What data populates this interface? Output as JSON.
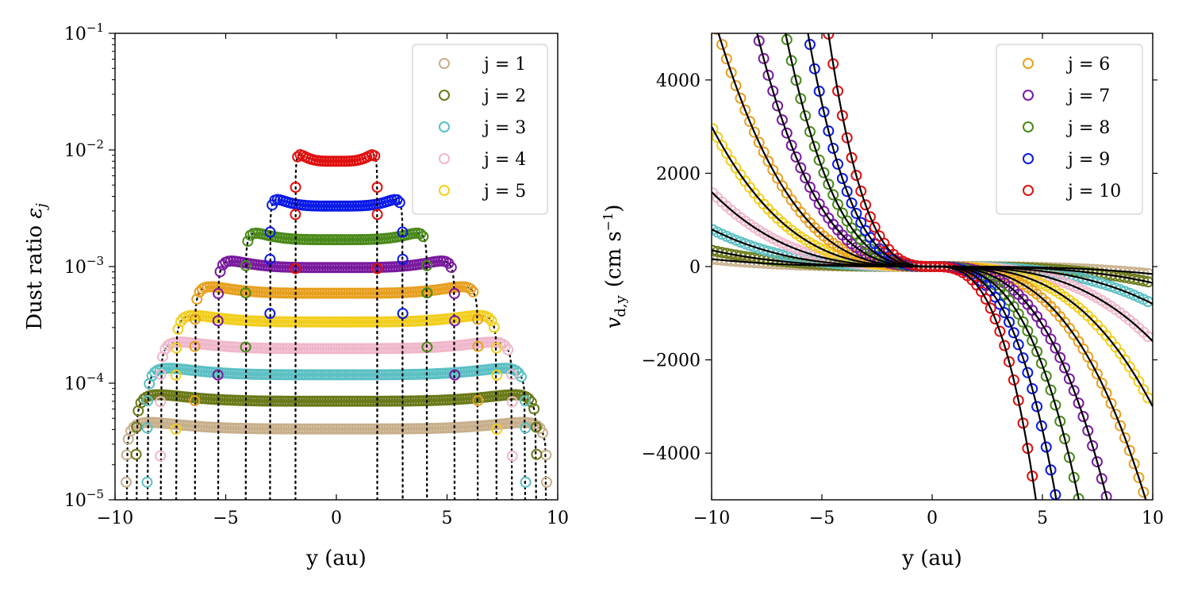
{
  "figure": {
    "panel_count": 2
  },
  "chart_data": [
    {
      "type": "scatter",
      "title": "",
      "xlabel": "y (au)",
      "ylabel_text": "Dust ratio ",
      "ylabel_symbol": "ε",
      "ylabel_subscript": "j",
      "xscale": "linear",
      "yscale": "log",
      "xlim": [
        -10,
        10
      ],
      "ylim": [
        1e-05,
        0.1
      ],
      "xticks": [
        -10,
        -5,
        0,
        5,
        10
      ],
      "xtick_labels": [
        "−10",
        "−5",
        "0",
        "5",
        "10"
      ],
      "ytick_exponents": [
        -5,
        -4,
        -3,
        -2,
        -1
      ],
      "ytick_base": "10",
      "legend_position": "upper-right",
      "marker": "open-circle",
      "dotted_guides": "black dotted lines",
      "series": [
        {
          "name": "j = 1",
          "color": "#C8B08C",
          "plateau": 4.05e-05,
          "edge": 9.5
        },
        {
          "name": "j = 2",
          "color": "#6B7A1A",
          "plateau": 7e-05,
          "edge": 9.05
        },
        {
          "name": "j = 3",
          "color": "#5CC0C4",
          "plateau": 0.000118,
          "edge": 8.55
        },
        {
          "name": "j = 4",
          "color": "#F0B8CC",
          "plateau": 0.000198,
          "edge": 7.95
        },
        {
          "name": "j = 5",
          "color": "#F2CF1E",
          "plateau": 0.000335,
          "edge": 7.25
        },
        {
          "name": "j = 6",
          "color": "#E8A020",
          "plateau": 0.00059,
          "edge": 6.4,
          "in_legend": false
        },
        {
          "name": "j = 7",
          "color": "#7A1AA0",
          "plateau": 0.00098,
          "edge": 5.35,
          "in_legend": false
        },
        {
          "name": "j = 8",
          "color": "#4A8A1A",
          "plateau": 0.0017,
          "edge": 4.1,
          "in_legend": false
        },
        {
          "name": "j = 9",
          "color": "#0A1AE8",
          "plateau": 0.0033,
          "edge": 3.0,
          "in_legend": false
        },
        {
          "name": "j = 10",
          "color": "#E01010",
          "plateau": 0.008,
          "edge": 1.85,
          "in_legend": false
        }
      ]
    },
    {
      "type": "scatter",
      "title": "",
      "xlabel": "y (au)",
      "ylabel_symbol": "v",
      "ylabel_subscript": "d,y",
      "ylabel_units": "(cm s",
      "ylabel_units_exp": "−1",
      "ylabel_units_close": ")",
      "xscale": "linear",
      "yscale": "linear",
      "xlim": [
        -10,
        10
      ],
      "ylim": [
        -5000,
        5000
      ],
      "xticks": [
        -10,
        -5,
        0,
        5,
        10
      ],
      "xtick_labels": [
        "−10",
        "−5",
        "0",
        "5",
        "10"
      ],
      "yticks": [
        -4000,
        -2000,
        0,
        2000,
        4000
      ],
      "ytick_labels": [
        "−4000",
        "−2000",
        "0",
        "2000",
        "4000"
      ],
      "legend_position": "upper-right",
      "marker": "open-circle",
      "model_curves": "solid black lines",
      "series": [
        {
          "name": "j = 1",
          "color": "#C8B08C",
          "slope": 0.16,
          "in_legend": false
        },
        {
          "name": "j = 2",
          "color": "#6B7A1A",
          "slope": 0.35,
          "in_legend": false
        },
        {
          "name": "j = 3",
          "color": "#5CC0C4",
          "slope": 0.8,
          "in_legend": false
        },
        {
          "name": "j = 4",
          "color": "#F0B8CC",
          "slope": 1.6,
          "in_legend": false
        },
        {
          "name": "j = 5",
          "color": "#F2CF1E",
          "slope": 3.0,
          "in_legend": false
        },
        {
          "name": "j = 6",
          "color": "#E8A020",
          "slope": 5.5
        },
        {
          "name": "j = 7",
          "color": "#7A1AA0",
          "slope": 10.0
        },
        {
          "name": "j = 8",
          "color": "#4A8A1A",
          "slope": 17.0
        },
        {
          "name": "j = 9",
          "color": "#0A1AE8",
          "slope": 28.0
        },
        {
          "name": "j = 10",
          "color": "#E01010",
          "slope": 48.0
        }
      ]
    }
  ]
}
